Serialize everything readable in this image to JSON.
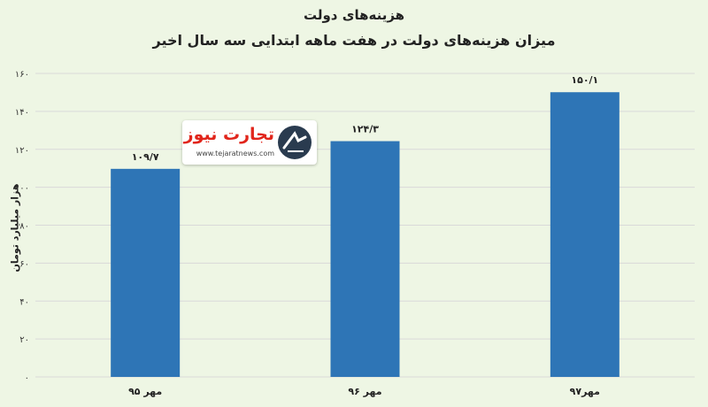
{
  "header": {
    "title": "هزینه‌های دولت",
    "subtitle": "میزان هزینه‌های دولت در هفت ماهه ابتدایی سه سال اخیر"
  },
  "logo": {
    "name": "تجارت نیوز",
    "url": "www.tejaratnews.com"
  },
  "chart_data": {
    "type": "bar",
    "title": "هزینه‌های دولت",
    "subtitle": "میزان هزینه‌های دولت در هفت ماهه ابتدایی سه سال اخیر",
    "ylabel": "هزار میلیارد تومان",
    "xlabel": "",
    "categories": [
      "مهر ۹۵",
      "مهر ۹۶",
      "مهر۹۷"
    ],
    "values": [
      109.7,
      124.3,
      150.1
    ],
    "value_labels": [
      "۱۰۹/۷",
      "۱۲۴/۳",
      "۱۵۰/۱"
    ],
    "ylim": [
      0,
      160
    ],
    "yticks": [
      0,
      20,
      40,
      60,
      80,
      100,
      120,
      140,
      160
    ],
    "ytick_labels": [
      "۰",
      "۲۰",
      "۴۰",
      "۶۰",
      "۸۰",
      "۱۰۰",
      "۱۲۰",
      "۱۴۰",
      "۱۶۰"
    ],
    "grid": true,
    "bar_color": "#2e75b6",
    "gridline_color": "#d9d9d9"
  }
}
